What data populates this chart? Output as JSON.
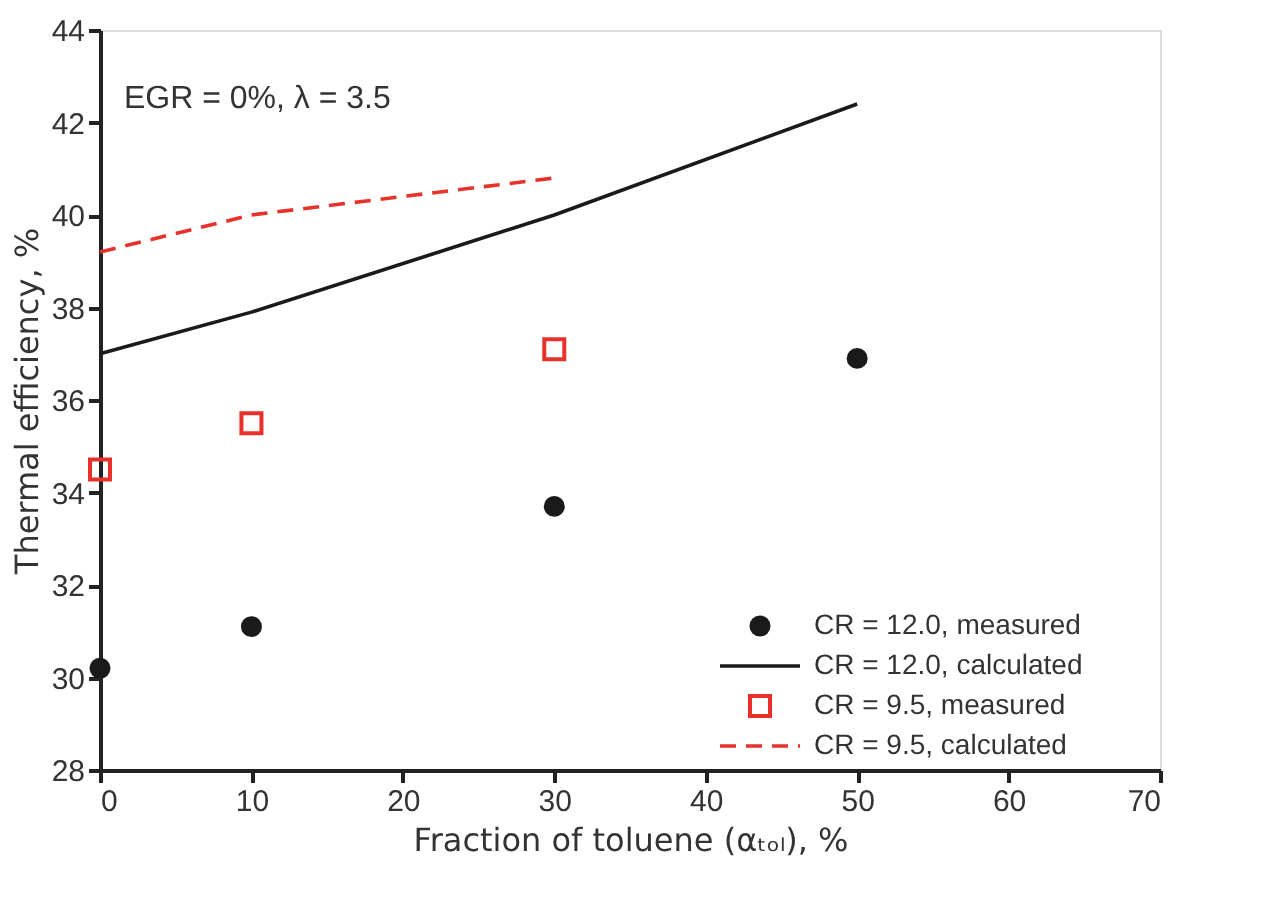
{
  "chart_data": {
    "type": "scatter",
    "xlabel": "Fraction of toluene (αₜₒₗ), %",
    "ylabel": "Thermal efficiency, %",
    "xlim": [
      0,
      70
    ],
    "xticks": [
      0,
      10,
      20,
      30,
      40,
      50,
      60,
      70
    ],
    "ylim": [
      28,
      44
    ],
    "yticks": [
      28,
      30,
      32,
      34,
      36,
      38,
      40,
      42,
      44
    ],
    "grid": false,
    "legend": "bottom right",
    "annotations": [
      "EGR = 0%, λ = 3.5"
    ],
    "series": [
      {
        "name": "CR = 12.0, measured",
        "marker": "circle",
        "color": "#1a1a1a",
        "x": [
          0,
          10,
          30,
          50
        ],
        "values": [
          30.2,
          31.1,
          33.7,
          36.9
        ]
      },
      {
        "name": "CR = 12.0, calculated",
        "type": "line",
        "line_style": "solid",
        "color": "#1a1a1a",
        "x": [
          0,
          10,
          30,
          50
        ],
        "values": [
          37.0,
          37.9,
          40.0,
          42.4
        ]
      },
      {
        "name": "CR = 9.5, measured",
        "marker": "square",
        "color": "#e8312a",
        "x": [
          0,
          10,
          30
        ],
        "values": [
          34.5,
          35.5,
          37.1
        ]
      },
      {
        "name": "CR = 9.5, calculated",
        "type": "line",
        "line_style": "dashed",
        "color": "#e8312a",
        "x": [
          0,
          10,
          20,
          30
        ],
        "values": [
          39.2,
          40.0,
          40.4,
          40.8
        ]
      }
    ]
  }
}
